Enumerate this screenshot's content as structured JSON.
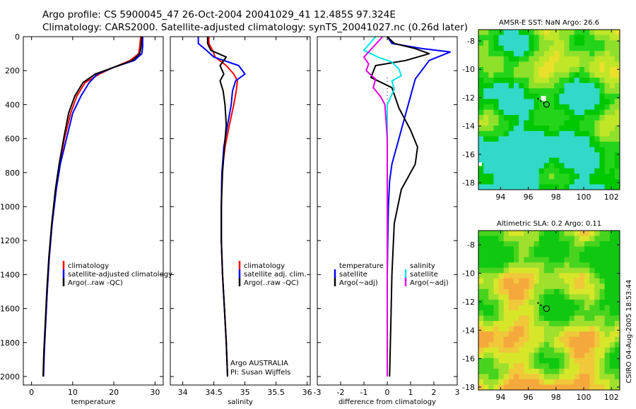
{
  "title_line1": "Argo profile: CS 5900045_47 26-Oct-2004 20041029_41 12.485S 97.324E",
  "title_line2": "Climatology: CARS2000. Satellite-adjusted climatology: synTS_20041027.nc (0.26d later)",
  "colors": {
    "red": "#ff0000",
    "blue": "#0000ff",
    "black": "#000000",
    "cyan": "#00e5e5",
    "magenta": "#e000e0"
  },
  "chart_data": [
    {
      "type": "line",
      "name": "temperature-panel",
      "xlabel": "temperature",
      "ylabel": "",
      "xlim": [
        -2,
        32
      ],
      "ylim": [
        2050,
        0
      ],
      "xticks": [
        0,
        10,
        20,
        30
      ],
      "yticks": [
        0,
        200,
        400,
        600,
        800,
        1000,
        1200,
        1400,
        1600,
        1800,
        2000
      ],
      "legend": [
        "climatology",
        "satellite-adjusted climatology",
        "Argo(..raw -QC)"
      ],
      "series": [
        {
          "name": "climatology",
          "color": "red",
          "x": [
            26.5,
            26.3,
            26.0,
            24.0,
            20.0,
            16.5,
            13.0,
            11.0,
            9.5,
            8.0,
            6.8,
            6.0,
            5.0,
            4.3,
            3.8,
            3.4,
            3.1,
            2.9
          ],
          "y": [
            0,
            60,
            100,
            140,
            180,
            220,
            270,
            350,
            450,
            600,
            750,
            900,
            1100,
            1300,
            1500,
            1700,
            1850,
            2000
          ]
        },
        {
          "name": "satellite-adjusted",
          "color": "blue",
          "x": [
            27.0,
            27.0,
            26.8,
            25.0,
            20.0,
            16.0,
            14.0,
            12.0,
            10.0,
            8.5,
            7.0,
            6.0,
            5.0,
            4.3,
            3.8,
            3.4,
            3.1,
            2.9
          ],
          "y": [
            0,
            60,
            100,
            140,
            180,
            220,
            270,
            350,
            450,
            600,
            750,
            900,
            1100,
            1300,
            1500,
            1700,
            1850,
            2000
          ]
        },
        {
          "name": "argo",
          "color": "black",
          "x": [
            26.8,
            26.6,
            26.3,
            24.5,
            20.0,
            15.5,
            12.5,
            10.5,
            9.0,
            7.8,
            6.7,
            5.8,
            4.9,
            4.2,
            3.7,
            3.3,
            3.0,
            2.8
          ],
          "y": [
            0,
            60,
            100,
            140,
            180,
            220,
            270,
            350,
            450,
            600,
            750,
            900,
            1100,
            1300,
            1500,
            1700,
            1850,
            2000
          ]
        }
      ]
    },
    {
      "type": "line",
      "name": "salinity-panel",
      "xlabel": "salinity",
      "xlim": [
        33.8,
        36.05
      ],
      "ylim": [
        2050,
        0
      ],
      "xticks": [
        34,
        34.5,
        35,
        35.5,
        36
      ],
      "legend": [
        "climatology",
        "satellite adj. clim.",
        "Argo(..raw -QC)"
      ],
      "footer_line1": "Argo AUSTRALIA",
      "footer_line2": "PI: Susan Wijffels",
      "series": [
        {
          "name": "climatology",
          "color": "red",
          "x": [
            34.42,
            34.42,
            34.48,
            34.52,
            34.7,
            34.82,
            34.88,
            34.86,
            34.82,
            34.75,
            34.68,
            34.63,
            34.62,
            34.62,
            34.64,
            34.67,
            34.7,
            34.72
          ],
          "y": [
            0,
            40,
            80,
            120,
            170,
            220,
            260,
            320,
            400,
            520,
            650,
            800,
            1000,
            1200,
            1400,
            1600,
            1800,
            2000
          ]
        },
        {
          "name": "satellite-adjusted",
          "color": "blue",
          "x": [
            34.25,
            34.25,
            34.38,
            34.5,
            34.9,
            35.0,
            34.85,
            34.8,
            34.78,
            34.72,
            34.66,
            34.63,
            34.62,
            34.62,
            34.64,
            34.67,
            34.7,
            34.72
          ],
          "y": [
            0,
            40,
            80,
            120,
            170,
            220,
            260,
            320,
            400,
            520,
            650,
            800,
            1000,
            1200,
            1400,
            1600,
            1800,
            2000
          ]
        },
        {
          "name": "argo",
          "color": "black",
          "x": [
            34.4,
            34.4,
            34.45,
            34.7,
            34.6,
            34.66,
            34.6,
            34.65,
            34.68,
            34.7,
            34.67,
            34.64,
            34.62,
            34.62,
            34.64,
            34.67,
            34.7,
            34.72
          ],
          "y": [
            0,
            40,
            80,
            120,
            170,
            220,
            260,
            320,
            400,
            520,
            650,
            800,
            1000,
            1200,
            1400,
            1600,
            1800,
            2000
          ]
        }
      ]
    },
    {
      "type": "line",
      "name": "difference-panel",
      "xlabel": "difference from climatology",
      "xlim": [
        -3,
        3
      ],
      "ylim": [
        2050,
        0
      ],
      "xticks": [
        -3,
        -2,
        -1,
        0,
        1,
        2,
        3
      ],
      "legend_left": [
        "temperature",
        "satellite",
        "Argo(~adj)"
      ],
      "legend_right": [
        "salinity",
        "satellite",
        "Argo(~adj)"
      ],
      "series": [
        {
          "name": "temperature-satellite",
          "color": "blue",
          "x": [
            0,
            0.2,
            1.5,
            2.7,
            1.8,
            1.2,
            1.0,
            0.8,
            0.6,
            0.4,
            0.2,
            0.1,
            0.05,
            0.02,
            0.0,
            0.0,
            0.0
          ],
          "y": [
            0,
            40,
            70,
            90,
            140,
            250,
            350,
            450,
            550,
            650,
            750,
            850,
            1000,
            1200,
            1400,
            1700,
            2000
          ]
        },
        {
          "name": "temperature-argo",
          "color": "black",
          "x": [
            0,
            0.3,
            1.2,
            1.8,
            0.8,
            -0.5,
            -0.7,
            0.2,
            0.5,
            1.0,
            1.3,
            1.2,
            0.6,
            0.3,
            0.2,
            0.15,
            0.1
          ],
          "y": [
            0,
            40,
            70,
            100,
            140,
            170,
            240,
            300,
            420,
            550,
            650,
            750,
            900,
            1100,
            1400,
            1700,
            2000
          ]
        },
        {
          "name": "salinity-satellite",
          "color": "cyan",
          "x": [
            -0.5,
            -1.0,
            -0.4,
            0.2,
            0.5,
            0.6,
            0.2,
            0.3,
            0.0,
            0.0,
            0.0,
            0.0,
            0.0
          ],
          "y": [
            0,
            80,
            120,
            150,
            190,
            230,
            260,
            310,
            400,
            600,
            1000,
            1500,
            2000
          ]
        },
        {
          "name": "salinity-argo",
          "color": "magenta",
          "x": [
            -0.2,
            -0.6,
            -1.0,
            -0.8,
            -0.9,
            -0.5,
            -0.6,
            -0.3,
            -0.1,
            0.0,
            0.0,
            0.0
          ],
          "y": [
            0,
            60,
            120,
            160,
            200,
            250,
            300,
            350,
            400,
            600,
            1000,
            2000
          ]
        }
      ]
    },
    {
      "type": "heatmap",
      "name": "sst-map",
      "title": "AMSR-E SST: NaN Argo: 26.6",
      "xlim": [
        92.4,
        102.6
      ],
      "ylim": [
        -18.5,
        -7.2
      ],
      "xticks": [
        94,
        96,
        98,
        100,
        102
      ],
      "yticks": [
        -8,
        -10,
        -12,
        -14,
        -16,
        -18
      ],
      "float_lon": 97.32,
      "float_lat": -12.485
    },
    {
      "type": "heatmap",
      "name": "sla-map",
      "title": "Altimetric SLA: 0.2 Argo: 0.11",
      "xlim": [
        92.4,
        102.6
      ],
      "ylim": [
        -18.2,
        -7.0
      ],
      "xticks": [
        94,
        96,
        98,
        100,
        102
      ],
      "yticks": [
        -8,
        -10,
        -12,
        -14,
        -16,
        -18
      ],
      "float_lon": 97.32,
      "float_lat": -12.485,
      "side_label": "CSIRO 04-Aug-2005 18:53:44"
    }
  ]
}
